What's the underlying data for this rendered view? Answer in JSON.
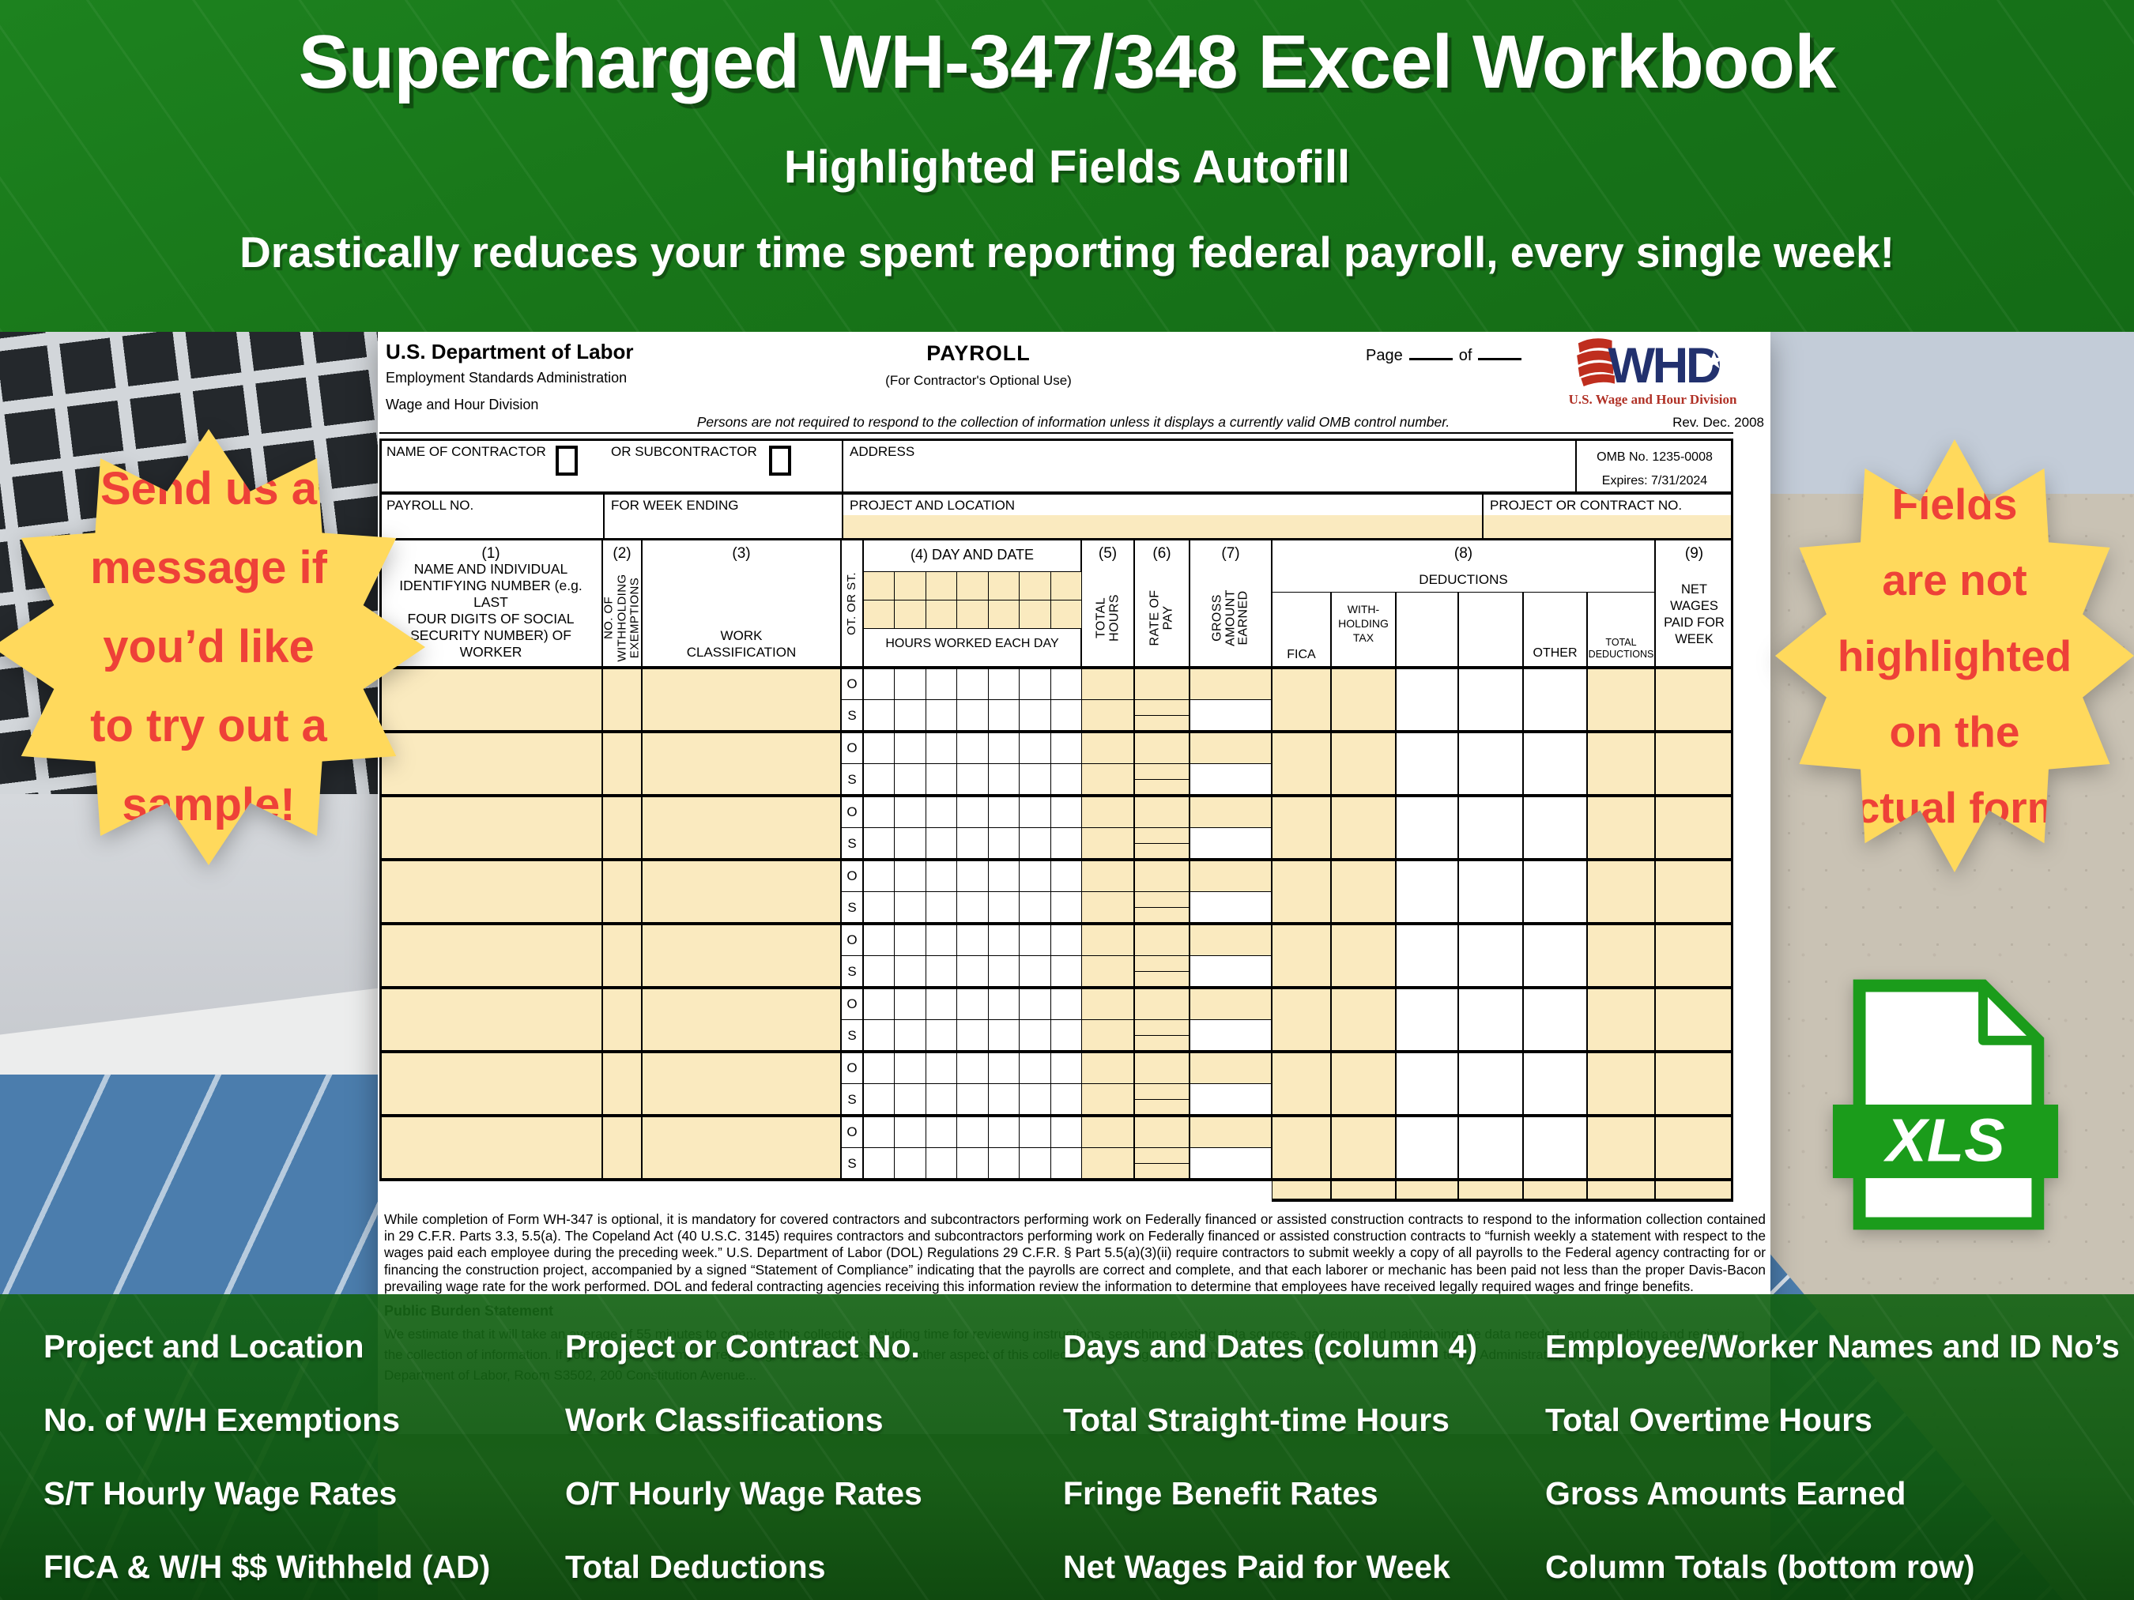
{
  "banner": {
    "title": "Supercharged WH-347/348 Excel Workbook",
    "subtitle": "Highlighted Fields Autofill",
    "tagline": "Drastically reduces your time spent reporting federal payroll, every single week!"
  },
  "left_burst": {
    "lines": [
      "Send us a",
      "message if",
      "you’d like",
      "to try out a",
      "sample!"
    ]
  },
  "right_burst": {
    "lines": [
      "Fields",
      "are not",
      "highlighted",
      "on the",
      "actual form."
    ]
  },
  "xls_badge": {
    "label": "XLS"
  },
  "form": {
    "agency": {
      "department": "U.S. Department of Labor",
      "administration": "Employment Standards Administration",
      "division": "Wage and Hour Division"
    },
    "title": "PAYROLL",
    "title_note": "(For Contractor's Optional Use)",
    "page_label": "Page",
    "of_label": "of",
    "logo": {
      "acronym": "WHD",
      "caption": "U.S. Wage and Hour Division"
    },
    "rev": "Rev. Dec. 2008",
    "omb_notice": "Persons are not required to respond to the collection of information unless it displays a currently valid OMB control number.",
    "fields": {
      "contractor": "NAME OF CONTRACTOR",
      "subcontractor": "OR SUBCONTRACTOR",
      "address": "ADDRESS",
      "omb_no": "OMB No.  1235-0008",
      "expires": "Expires:  7/31/2024",
      "payroll_no": "PAYROLL NO.",
      "week_ending": "FOR WEEK ENDING",
      "project_location": "PROJECT AND LOCATION",
      "project_contract": "PROJECT OR CONTRACT NO."
    },
    "columns": {
      "c1_num": "(1)",
      "c1_lines": [
        "NAME AND INDIVIDUAL",
        "IDENTIFYING NUMBER (e.g. LAST",
        "FOUR DIGITS OF SOCIAL",
        "SECURITY NUMBER) OF WORKER"
      ],
      "c2_num": "(2)",
      "c2_lines": [
        "NO. OF",
        "WITHHOLDING",
        "EXEMPTIONS"
      ],
      "c3_num": "(3)",
      "c3_lines": [
        "WORK",
        "CLASSIFICATION"
      ],
      "otst": "OT. OR ST.",
      "c4_label": "(4) DAY AND DATE",
      "c4_sub": "HOURS WORKED EACH DAY",
      "c5_num": "(5)",
      "c5_lines": [
        "TOTAL",
        "HOURS"
      ],
      "c6_num": "(6)",
      "c6_lines": [
        "RATE OF",
        "PAY"
      ],
      "c7_num": "(7)",
      "c7_lines": [
        "GROSS",
        "AMOUNT",
        "EARNED"
      ],
      "c8_num": "(8)",
      "c8_label": "DEDUCTIONS",
      "ded_fica": "FICA",
      "ded_wht_lines": [
        "WITH-",
        "HOLDING",
        "TAX"
      ],
      "ded_other": "OTHER",
      "ded_total_lines": [
        "TOTAL",
        "DEDUCTIONS"
      ],
      "c9_num": "(9)",
      "c9_lines": [
        "NET",
        "WAGES",
        "PAID FOR",
        "WEEK"
      ]
    },
    "row_labels": {
      "overtime": "O",
      "straight": "S"
    },
    "row_count": 8,
    "fine_print": "While completion of Form WH-347 is optional, it is mandatory for covered contractors and subcontractors performing work on Federally financed or assisted construction contracts to respond to the information collection contained in 29 C.F.R. Parts 3.3, 5.5(a). The Copeland Act (40 U.S.C. 3145) requires contractors and subcontractors performing work on Federally financed or assisted construction contracts to “furnish weekly a statement with respect to the wages paid each employee during the preceding week.”  U.S. Department of Labor (DOL) Regulations 29 C.F.R. § Part 5.5(a)(3)(ii) require contractors to submit weekly a copy of all payrolls to the Federal agency contracting for or financing the construction project, accompanied by a signed “Statement of Compliance” indicating that the payrolls are correct and complete, and that each laborer or mechanic has been paid not less than the proper Davis-Bacon prevailing wage rate for the work performed. DOL and federal contracting agencies receiving this information review the information to determine that employees have received legally required wages and fringe benefits.",
    "burden_title": "Public Burden Statement",
    "burden_text": "We estimate that it will take an average of 55 minutes to complete this collection, including time for reviewing instructions, searching existing data sources, gathering and maintaining the data needed, and completing and reviewing the collection of information. If you have any comments regarding these estimates or any other aspect of this collection, including suggestions for reducing this burden, send them to the Administrator, Wage and Hour Division, U.S. Department of Labor, Room S3502, 200 Constitution Avenue..."
  },
  "footer": {
    "features": [
      [
        "Project and Location",
        "No. of W/H Exemptions",
        "S/T Hourly Wage Rates",
        "FICA & W/H $$ Withheld (AD)"
      ],
      [
        "Project or Contract No.",
        "Work Classifications",
        "O/T Hourly Wage Rates",
        "Total Deductions"
      ],
      [
        "Days and Dates (column 4)",
        "Total Straight-time Hours",
        "Fringe Benefit Rates",
        "Net Wages Paid for Week"
      ],
      [
        "Employee/Worker Names and ID No’s",
        "Total Overtime Hours",
        "Gross Amounts Earned",
        "Column Totals (bottom row)"
      ]
    ]
  },
  "colors": {
    "banner_green": "#1a7a1d",
    "footer_green": "#115f13",
    "highlight_yellow": "#faeabf",
    "burst_yellow": "#ffd95c",
    "burst_red": "#ee4138",
    "xls_green": "#1b9c1b",
    "logo_navy": "#22316e",
    "logo_red": "#bf2e1e"
  }
}
